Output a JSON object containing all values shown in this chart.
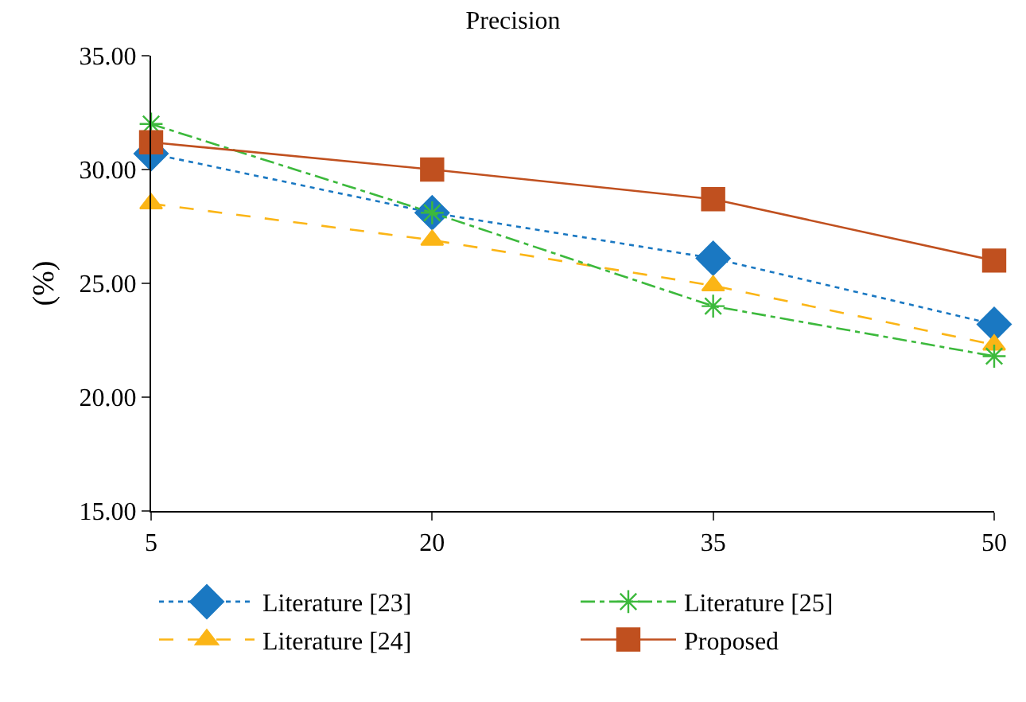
{
  "chart_data": {
    "type": "line",
    "title": "Precision",
    "ylabel": "(%)",
    "x": [
      5,
      20,
      35,
      50
    ],
    "series": [
      {
        "name": "Literature [23]",
        "color": "#1a78c2",
        "values": [
          30.7,
          28.1,
          26.1,
          23.2
        ],
        "marker": "diamond",
        "line_style": "dotted"
      },
      {
        "name": "Literature [24]",
        "color": "#fbb516",
        "values": [
          28.5,
          26.9,
          24.9,
          22.3
        ],
        "marker": "triangle",
        "line_style": "dashed"
      },
      {
        "name": "Literature [25]",
        "color": "#3cb93c",
        "values": [
          32.0,
          28.1,
          24.0,
          21.8
        ],
        "marker": "cross",
        "line_style": "dashdot"
      },
      {
        "name": "Proposed",
        "color": "#c0501f",
        "values": [
          31.2,
          30.0,
          28.7,
          26.0
        ],
        "marker": "square",
        "line_style": "solid"
      }
    ],
    "xlim": [
      5,
      50
    ],
    "xticks": [
      5,
      20,
      35,
      50
    ],
    "ylim": [
      15,
      35
    ],
    "yticks": [
      {
        "value": 15,
        "label": "15.00"
      },
      {
        "value": 20,
        "label": "20.00"
      },
      {
        "value": 25,
        "label": "25.00"
      },
      {
        "value": 30,
        "label": "30.00"
      },
      {
        "value": 35,
        "label": "35.00"
      }
    ],
    "legend": "bottom"
  }
}
